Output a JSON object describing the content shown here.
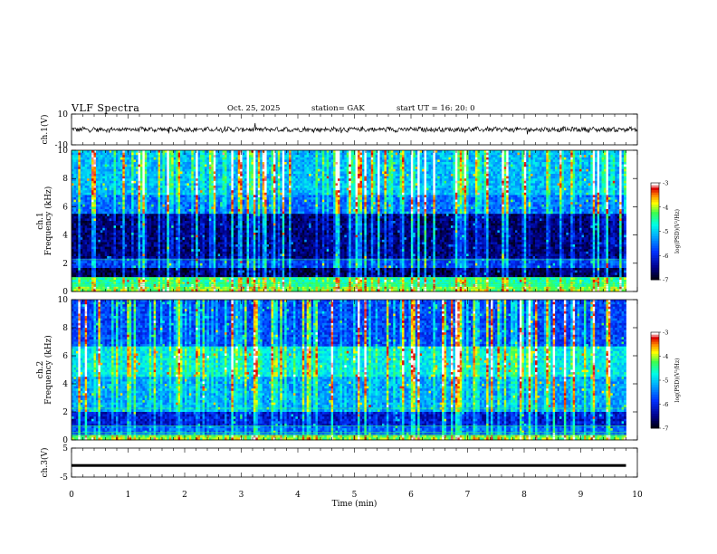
{
  "header": {
    "title": "VLF  Spectra",
    "date": "Oct. 25, 2025",
    "station": "station= GAK",
    "start_ut": "start  UT  =    16: 20: 0"
  },
  "chart_data": {
    "type": "heatmap",
    "xlabel": "Time  (min)",
    "xlim": [
      0,
      10
    ],
    "x_ticks": [
      "0",
      "1",
      "2",
      "3",
      "4",
      "5",
      "6",
      "7",
      "8",
      "9",
      "10"
    ],
    "panels": [
      {
        "name": "ch1-waveform",
        "type": "line",
        "ylabel": "ch.1(V)",
        "ylim": [
          -10,
          10
        ],
        "y_ticks": [
          "10",
          "-10"
        ],
        "baseline_value": 0,
        "amplitude_approx": 2,
        "line_color": "#000000"
      },
      {
        "name": "ch1-spectrogram",
        "type": "heatmap",
        "ylabel_top": "ch.1",
        "ylabel": "Frequency  (kHz)",
        "ylim": [
          0,
          10
        ],
        "y_ticks": [
          "0",
          "2",
          "4",
          "6",
          "8",
          "10"
        ],
        "data_end_min": 9.8,
        "colorbar": {
          "label": "log(PSD)(V²/Hz)",
          "range": [
            -7,
            -3
          ],
          "ticks": [
            "-3",
            "-4",
            "-5",
            "-6",
            "-7"
          ]
        }
      },
      {
        "name": "ch2-spectrogram",
        "type": "heatmap",
        "ylabel_top": "ch.2",
        "ylabel": "Frequency  (kHz)",
        "ylim": [
          0,
          10
        ],
        "y_ticks": [
          "0",
          "2",
          "4",
          "6",
          "8",
          "10"
        ],
        "data_end_min": 9.8,
        "colorbar": {
          "label": "log(PSD)(V²/Hz)",
          "range": [
            -7,
            -3
          ],
          "ticks": [
            "-3",
            "-4",
            "-5",
            "-6",
            "-7"
          ]
        }
      },
      {
        "name": "ch3-waveform",
        "type": "line",
        "ylabel": "ch.3(V)",
        "ylim": [
          -5,
          5
        ],
        "y_ticks": [
          "5",
          "-5"
        ],
        "baseline_value": -1,
        "data_end_min": 9.8,
        "line_color": "#000000"
      }
    ],
    "colormap": [
      "#000000",
      "#00008b",
      "#0033ff",
      "#00aaff",
      "#00ffee",
      "#33ff55",
      "#ffff00",
      "#ff8800",
      "#dd0000",
      "#ffffff"
    ]
  }
}
